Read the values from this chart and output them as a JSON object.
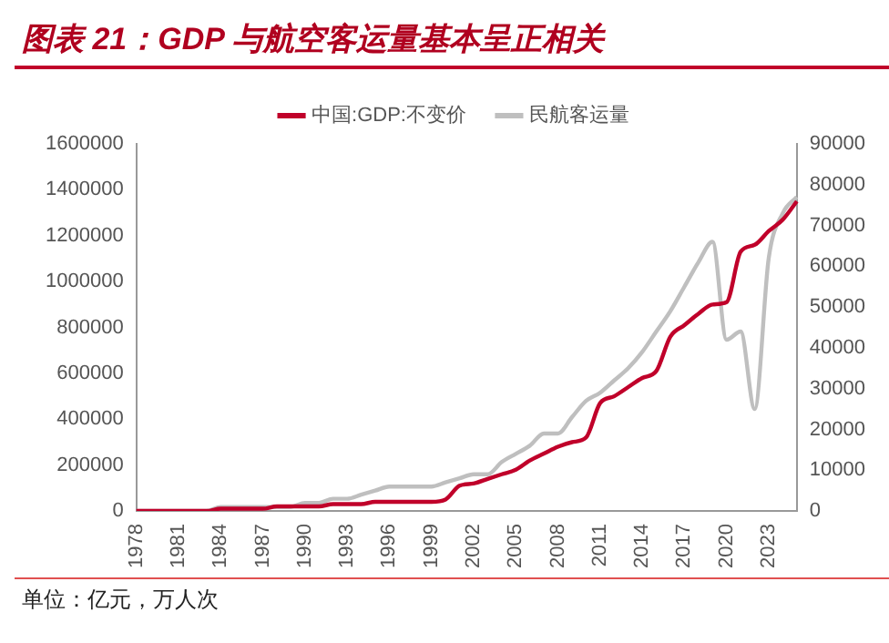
{
  "chart_data": {
    "type": "line",
    "title": "图表 21：GDP 与航空客运量基本呈正相关",
    "annotations": [
      "单位：亿元，万人次"
    ],
    "categories": [
      "1978",
      null,
      null,
      "1981",
      null,
      null,
      "1984",
      null,
      null,
      "1987",
      null,
      null,
      "1990",
      null,
      null,
      "1993",
      null,
      null,
      "1996",
      null,
      null,
      "1999",
      null,
      null,
      "2002",
      null,
      null,
      "2005",
      null,
      null,
      "2008",
      null,
      null,
      "2011",
      null,
      null,
      "2014",
      null,
      null,
      "2017",
      null,
      null,
      "2020",
      null,
      null,
      "2023",
      null,
      null
    ],
    "series": [
      {
        "name": "中国:GDP:不变价",
        "color": "#c0002a",
        "values": [
          0,
          0,
          0,
          0,
          0,
          0,
          10000,
          10000,
          10000,
          10000,
          20000,
          20000,
          20000,
          20000,
          30000,
          30000,
          30000,
          40000,
          40000,
          40000,
          40000,
          40000,
          50000,
          110000,
          120000,
          140000,
          160000,
          180000,
          220000,
          250000,
          280000,
          300000,
          320000,
          470000,
          500000,
          540000,
          580000,
          610000,
          760000,
          810000,
          860000,
          900000,
          910000,
          1130000,
          1160000,
          1220000,
          1270000,
          1350000
        ]
      },
      {
        "name": "民航客运量",
        "color": "#bfbfbf",
        "axis": "y2",
        "values": [
          0,
          0,
          0,
          0,
          0,
          0,
          1000,
          1000,
          1000,
          1000,
          1000,
          1000,
          2000,
          2000,
          3000,
          3000,
          4000,
          5000,
          6000,
          6000,
          6000,
          6000,
          7000,
          8000,
          9000,
          9000,
          12000,
          14000,
          16000,
          19000,
          19000,
          23000,
          27000,
          29000,
          32000,
          35000,
          39000,
          44000,
          49000,
          55000,
          61000,
          66000,
          42000,
          44000,
          25000,
          62000,
          73000,
          77000
        ]
      }
    ],
    "ylim": [
      0,
      1600000
    ],
    "yticks": [
      0,
      200000,
      400000,
      600000,
      800000,
      1000000,
      1200000,
      1400000,
      1600000
    ],
    "y2lim": [
      0,
      90000
    ],
    "y2ticks": [
      0,
      10000,
      20000,
      30000,
      40000,
      50000,
      60000,
      70000,
      80000,
      90000
    ],
    "grid": false,
    "legend": "top",
    "marker": "none",
    "line_style": "solid"
  }
}
